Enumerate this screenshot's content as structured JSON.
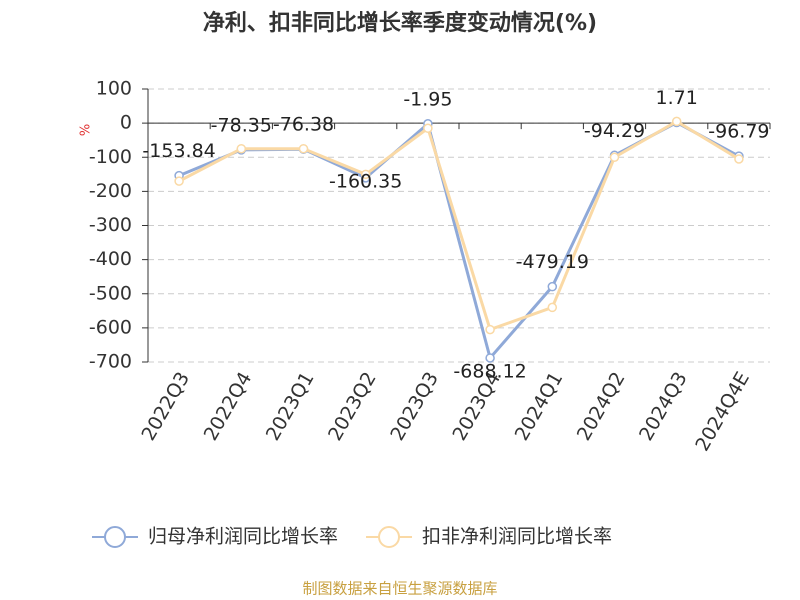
{
  "chart_data": {
    "type": "line",
    "title": "净利、扣非同比增长率季度变动情况(%)",
    "y_label": "%",
    "source": "制图数据来自恒生聚源数据库",
    "categories": [
      "2022Q3",
      "2022Q4",
      "2023Q1",
      "2023Q2",
      "2023Q3",
      "2023Q4",
      "2024Q1",
      "2024Q2",
      "2024Q3",
      "2024Q4E"
    ],
    "series": [
      {
        "name": "归母净利润同比增长率",
        "color": "#8fa9d8",
        "values": [
          -153.84,
          -78.35,
          -76.38,
          -160.35,
          -1.95,
          -688.12,
          -479.19,
          -94.29,
          1.71,
          -96.79
        ]
      },
      {
        "name": "扣非净利润同比增长率",
        "color": "#fad9a5",
        "values": [
          -170,
          -75,
          -75,
          -150,
          -15,
          -605,
          -540,
          -100,
          5,
          -105
        ]
      }
    ],
    "ylim": [
      -700,
      100
    ],
    "yticks": [
      -700,
      -600,
      -500,
      -400,
      -300,
      -200,
      -100,
      0,
      100
    ],
    "grid": true
  }
}
